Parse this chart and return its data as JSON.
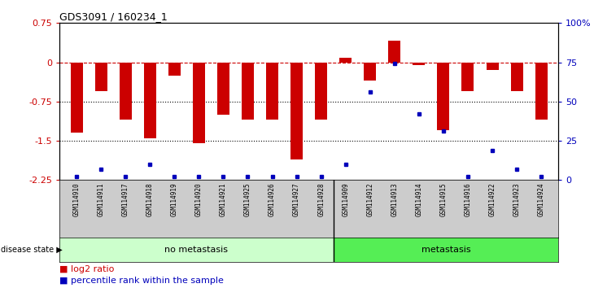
{
  "title": "GDS3091 / 160234_1",
  "samples": [
    "GSM114910",
    "GSM114911",
    "GSM114917",
    "GSM114918",
    "GSM114919",
    "GSM114920",
    "GSM114921",
    "GSM114925",
    "GSM114926",
    "GSM114927",
    "GSM114928",
    "GSM114909",
    "GSM114912",
    "GSM114913",
    "GSM114914",
    "GSM114915",
    "GSM114916",
    "GSM114922",
    "GSM114923",
    "GSM114924"
  ],
  "log2_ratio": [
    -1.35,
    -0.55,
    -1.1,
    -1.45,
    -0.25,
    -1.55,
    -1.0,
    -1.1,
    -1.1,
    -1.85,
    -1.1,
    0.08,
    -0.35,
    0.42,
    -0.05,
    -1.3,
    -0.55,
    -0.15,
    -0.55,
    -1.1
  ],
  "percentile": [
    2,
    7,
    2,
    10,
    2,
    2,
    2,
    2,
    2,
    2,
    2,
    10,
    56,
    74,
    42,
    31,
    2,
    19,
    7,
    2
  ],
  "no_metastasis_count": 11,
  "metastasis_count": 9,
  "ymin": -2.25,
  "ymax": 0.75,
  "yticks_left": [
    0.75,
    0,
    -0.75,
    -1.5,
    -2.25
  ],
  "yticks_right": [
    100,
    75,
    50,
    25,
    0
  ],
  "bar_color": "#cc0000",
  "percentile_color": "#0000bb",
  "no_metastasis_color": "#ccffcc",
  "metastasis_color": "#55ee55",
  "sample_label_bg": "#cccccc",
  "background_color": "#ffffff",
  "dashed_line_color": "#cc0000",
  "dotted_line_color": "#000000"
}
